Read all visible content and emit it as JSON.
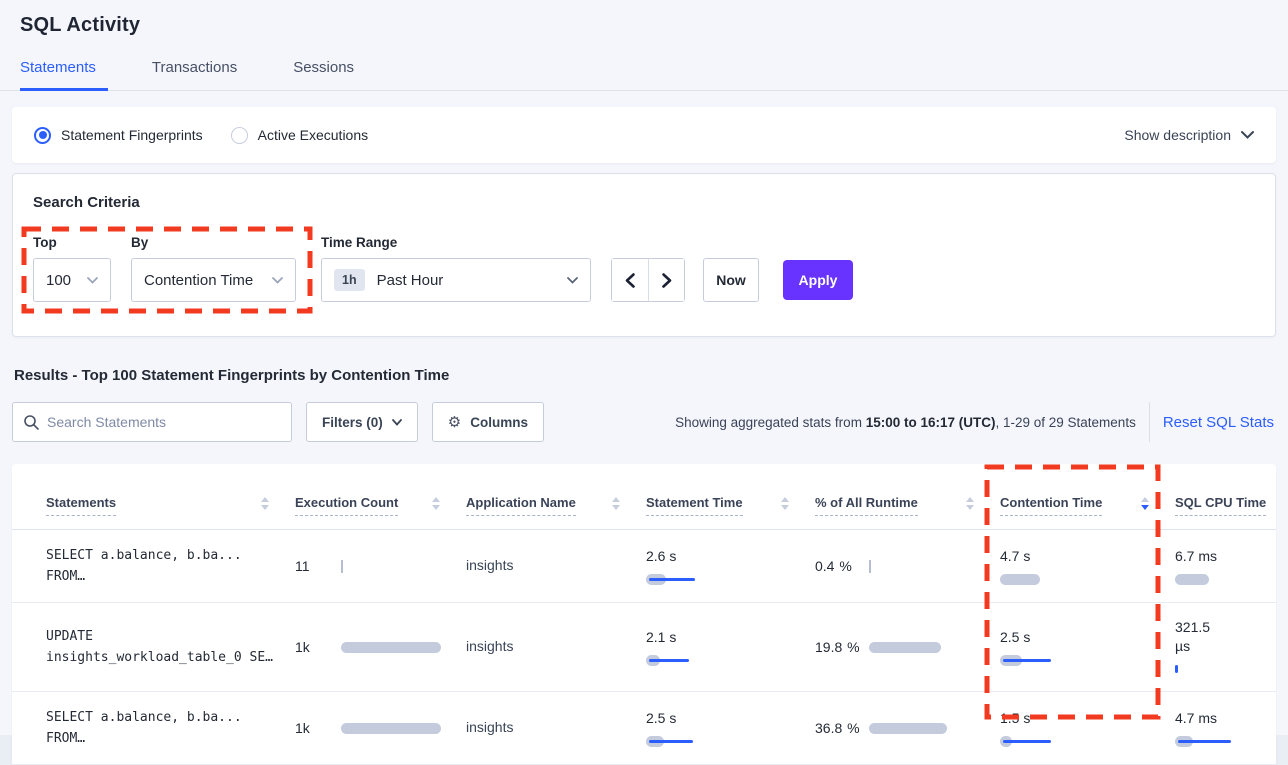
{
  "page_title": "SQL Activity",
  "tabs": [
    {
      "label": "Statements",
      "active": true
    },
    {
      "label": "Transactions",
      "active": false
    },
    {
      "label": "Sessions",
      "active": false
    }
  ],
  "view_mode": {
    "options": [
      {
        "label": "Statement Fingerprints",
        "selected": true
      },
      {
        "label": "Active Executions",
        "selected": false
      }
    ],
    "show_description_label": "Show description"
  },
  "search_criteria": {
    "title": "Search Criteria",
    "top_label": "Top",
    "top_value": "100",
    "by_label": "By",
    "by_value": "Contention Time",
    "time_range_label": "Time Range",
    "time_range_badge": "1h",
    "time_range_value": "Past Hour",
    "now_label": "Now",
    "apply_label": "Apply"
  },
  "results": {
    "heading": "Results - Top 100 Statement Fingerprints by Contention Time",
    "search_placeholder": "Search Statements",
    "filters_label": "Filters (0)",
    "columns_label": "Columns",
    "stats_prefix": "Showing aggregated stats from ",
    "stats_bold": "15:00 to 16:17 (UTC)",
    "stats_suffix": ", 1-29 of 29 Statements",
    "reset_label": "Reset SQL Stats"
  },
  "table": {
    "columns": [
      {
        "label": "Statements",
        "sort": "none",
        "sort_visible": true
      },
      {
        "label": "Execution Count",
        "sort": "none",
        "sort_visible": true
      },
      {
        "label": "Application Name",
        "sort": "none",
        "sort_visible": true
      },
      {
        "label": "Statement Time",
        "sort": "none",
        "sort_visible": true
      },
      {
        "label": "% of All Runtime",
        "sort": "none",
        "sort_visible": true
      },
      {
        "label": "Contention Time",
        "sort": "desc",
        "sort_visible": true
      },
      {
        "label": "SQL CPU Time",
        "sort": "none",
        "sort_visible": false
      }
    ],
    "rows": [
      {
        "statement": [
          "SELECT a.balance, b.ba...",
          "FROM…"
        ],
        "execution_count": {
          "text": "11",
          "bar": {
            "gray": 2,
            "blue": 0
          }
        },
        "application_name": "insights",
        "statement_time": {
          "text": "2.6 s",
          "bar": {
            "gray": 20,
            "blue": 46
          }
        },
        "pct_runtime": {
          "text": "0.4 %",
          "bar": {
            "gray": 2,
            "blue": 0
          }
        },
        "contention_time": {
          "text": "4.7 s",
          "bar": {
            "gray": 40,
            "blue": 0
          }
        },
        "sql_cpu_time": {
          "text": "6.7 ms",
          "bar": {
            "gray": 34,
            "blue": 0
          }
        }
      },
      {
        "statement": [
          "UPDATE",
          "insights_workload_table_0 SE…"
        ],
        "execution_count": {
          "text": "1k",
          "bar": {
            "gray": 100,
            "blue": 0
          }
        },
        "application_name": "insights",
        "statement_time": {
          "text": "2.1 s",
          "bar": {
            "gray": 14,
            "blue": 40
          }
        },
        "pct_runtime": {
          "text": "19.8 %",
          "bar": {
            "gray": 72,
            "blue": 0
          }
        },
        "contention_time": {
          "text": "2.5 s",
          "bar": {
            "gray": 22,
            "blue": 48
          }
        },
        "sql_cpu_time": {
          "text": "321.5 µs",
          "bar": {
            "gray": 0,
            "blue": 3
          }
        }
      },
      {
        "statement": [
          "SELECT a.balance, b.ba...",
          "FROM…"
        ],
        "execution_count": {
          "text": "1k",
          "bar": {
            "gray": 100,
            "blue": 0
          }
        },
        "application_name": "insights",
        "statement_time": {
          "text": "2.5 s",
          "bar": {
            "gray": 18,
            "blue": 44
          }
        },
        "pct_runtime": {
          "text": "36.8 %",
          "bar": {
            "gray": 78,
            "blue": 0
          }
        },
        "contention_time": {
          "text": "1.5 s",
          "bar": {
            "gray": 12,
            "blue": 48
          }
        },
        "sql_cpu_time": {
          "text": "4.7 ms",
          "bar": {
            "gray": 18,
            "blue": 53
          }
        }
      }
    ]
  },
  "colors": {
    "accent_blue": "#2b5dff",
    "apply_purple": "#6933ff",
    "annotation_red": "#f23a21",
    "bar_gray": "#c3cbdc",
    "bar_blue": "#2b5dff"
  }
}
